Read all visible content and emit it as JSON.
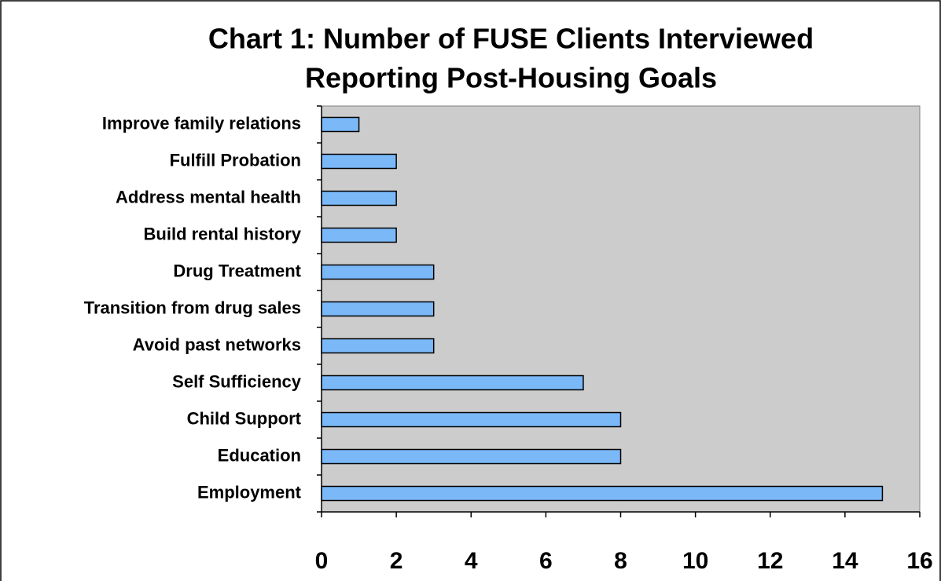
{
  "chart_data": {
    "type": "bar",
    "orientation": "horizontal",
    "title": [
      "Chart 1: Number of FUSE Clients Interviewed",
      "Reporting Post-Housing Goals"
    ],
    "categories": [
      "Improve family relations",
      "Fulfill Probation",
      "Address mental health",
      "Build rental history",
      "Drug Treatment",
      "Transition from drug sales",
      "Avoid past networks",
      "Self Sufficiency",
      "Child Support",
      "Education",
      "Employment"
    ],
    "values": [
      1,
      2,
      2,
      2,
      3,
      3,
      3,
      7,
      8,
      8,
      15
    ],
    "color": "#7ab8f8",
    "plot_background": "#cccccc",
    "xlim": [
      0,
      16
    ],
    "xticks": [
      0,
      2,
      4,
      6,
      8,
      10,
      12,
      14,
      16
    ],
    "grid": false
  }
}
